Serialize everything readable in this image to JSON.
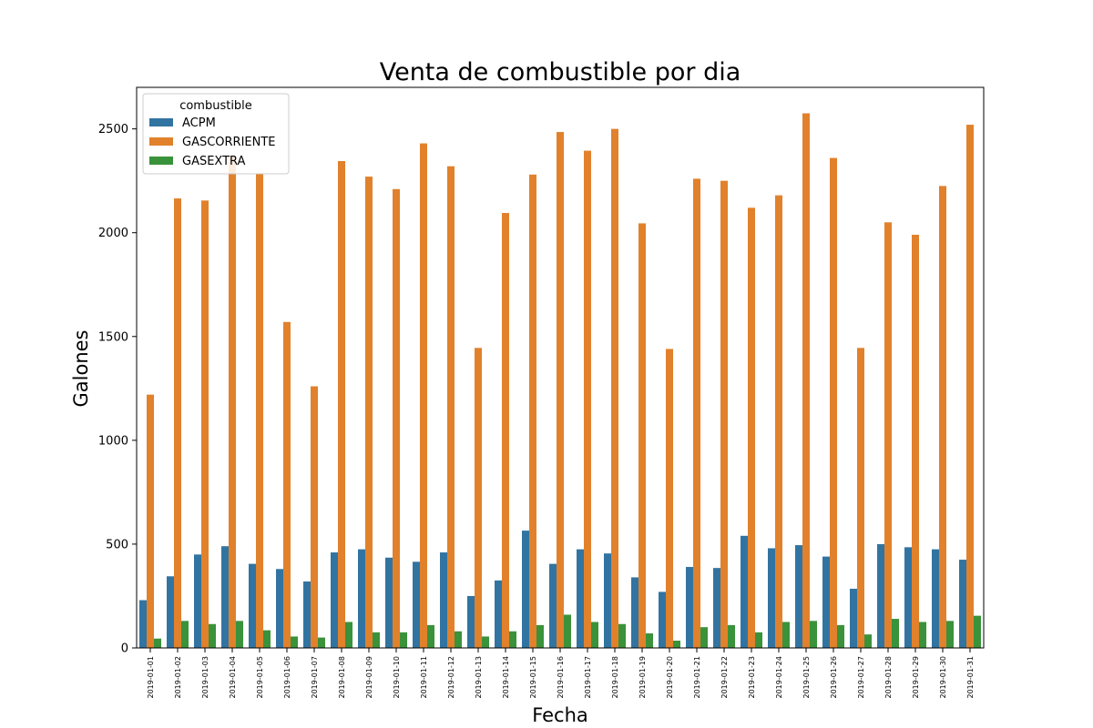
{
  "chart_data": {
    "type": "bar",
    "title": "Venta de combustible por dia",
    "xlabel": "Fecha",
    "ylabel": "Galones",
    "ylim": [
      0,
      2700
    ],
    "yticks": [
      0,
      500,
      1000,
      1500,
      2000,
      2500
    ],
    "grid": false,
    "legend": {
      "title": "combustible",
      "placement": "top-left"
    },
    "categories": [
      "2019-01-01",
      "2019-01-02",
      "2019-01-03",
      "2019-01-04",
      "2019-01-05",
      "2019-01-06",
      "2019-01-07",
      "2019-01-08",
      "2019-01-09",
      "2019-01-10",
      "2019-01-11",
      "2019-01-12",
      "2019-01-13",
      "2019-01-14",
      "2019-01-15",
      "2019-01-16",
      "2019-01-17",
      "2019-01-18",
      "2019-01-19",
      "2019-01-20",
      "2019-01-21",
      "2019-01-22",
      "2019-01-23",
      "2019-01-24",
      "2019-01-25",
      "2019-01-26",
      "2019-01-27",
      "2019-01-28",
      "2019-01-29",
      "2019-01-30",
      "2019-01-31"
    ],
    "series": [
      {
        "name": "ACPM",
        "color": "#3274a1",
        "values": [
          230,
          345,
          450,
          490,
          405,
          380,
          320,
          460,
          475,
          435,
          415,
          460,
          250,
          325,
          565,
          405,
          475,
          455,
          340,
          270,
          390,
          385,
          540,
          480,
          495,
          440,
          285,
          500,
          485,
          475,
          425
        ]
      },
      {
        "name": "GASCORRIENTE",
        "color": "#e1812c",
        "values": [
          1220,
          2165,
          2155,
          2370,
          2285,
          1570,
          1260,
          2345,
          2270,
          2210,
          2430,
          2320,
          1445,
          2095,
          2280,
          2485,
          2395,
          2500,
          2045,
          1440,
          2260,
          2250,
          2120,
          2180,
          2575,
          2360,
          1445,
          2050,
          1990,
          2225,
          2520
        ]
      },
      {
        "name": "GASEXTRA",
        "color": "#3a923a",
        "values": [
          45,
          130,
          115,
          130,
          85,
          55,
          50,
          125,
          75,
          75,
          110,
          80,
          55,
          80,
          110,
          160,
          125,
          115,
          70,
          35,
          100,
          110,
          75,
          125,
          130,
          110,
          65,
          140,
          125,
          130,
          155
        ]
      }
    ]
  }
}
